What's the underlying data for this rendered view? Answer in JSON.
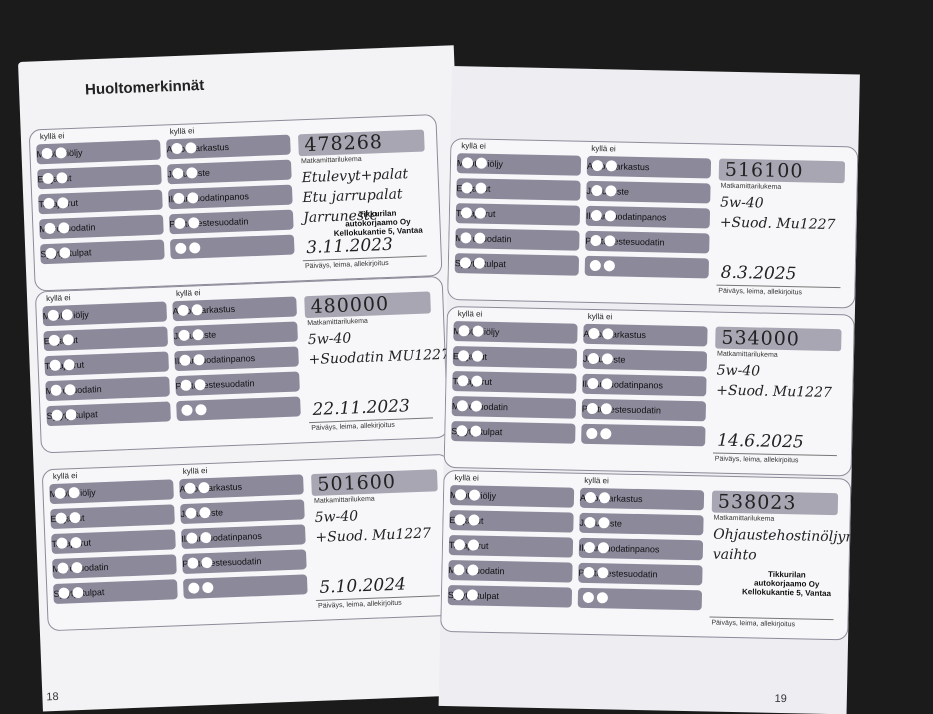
{
  "header": {
    "title": "Huoltomerkinnät"
  },
  "pages": {
    "left_number": "18",
    "right_number": "19"
  },
  "form": {
    "yes_no": "kyllä ei",
    "left_items": [
      "Moottoriöljy",
      "Etujarrut",
      "Takajarrut",
      "Mikrosuodatin",
      "Sytytystulpat"
    ],
    "right_items": [
      "Auton tarkastus",
      "Jarruneste",
      "Ilmansuodatinpanos",
      "Polttonestesuodatin"
    ],
    "odometer_caption": "Matkamittarilukema",
    "signature_caption": "Päiväys, leima, allekirjoitus"
  },
  "entries": [
    {
      "odometer": "478268",
      "notes": [
        "Etulevyt+palat",
        "Etu jarrupalat",
        "Jarruneste"
      ],
      "stamp": [
        "Tikkurilan",
        "autokorjaamo Oy",
        "Kellokukantie 5, Vantaa"
      ],
      "date": "3.11.2023"
    },
    {
      "odometer": "480000",
      "notes": [
        "5w-40",
        "+Suodatin MU1227"
      ],
      "date": "22.11.2023"
    },
    {
      "odometer": "501600",
      "notes": [
        "5w-40",
        "+Suod. Mu1227"
      ],
      "date": "5.10.2024"
    },
    {
      "odometer": "516100",
      "notes": [
        "5w-40",
        "+Suod. Mu1227"
      ],
      "date": "8.3.2025"
    },
    {
      "odometer": "534000",
      "notes": [
        "5w-40",
        "+Suod. Mu1227"
      ],
      "date": "14.6.2025"
    },
    {
      "odometer": "538023",
      "notes": [
        "Ohjaustehostinöljyn",
        "vaihto"
      ],
      "stamp": [
        "Tikkurilan",
        "autokorjaamo Oy",
        "Kellokukantie 5, Vantaa"
      ]
    }
  ]
}
